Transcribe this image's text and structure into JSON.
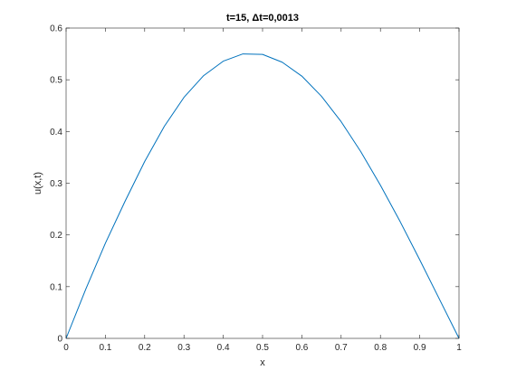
{
  "chart_data": {
    "type": "line",
    "title": "t=15, Δt=0,0013",
    "xlabel": "x",
    "ylabel": "u(x,t)",
    "xlim": [
      0,
      1
    ],
    "ylim": [
      0,
      0.6
    ],
    "xticks": [
      0,
      0.1,
      0.2,
      0.3,
      0.4,
      0.5,
      0.6,
      0.7,
      0.8,
      0.9,
      1
    ],
    "xtick_labels": [
      "0",
      "0.1",
      "0.2",
      "0.3",
      "0.4",
      "0.5",
      "0.6",
      "0.7",
      "0.8",
      "0.9",
      "1"
    ],
    "yticks": [
      0,
      0.1,
      0.2,
      0.3,
      0.4,
      0.5,
      0.6
    ],
    "ytick_labels": [
      "0",
      "0.1",
      "0.2",
      "0.3",
      "0.4",
      "0.5",
      "0.6"
    ],
    "grid": false,
    "series": [
      {
        "color": "#0072BD",
        "x": [
          0,
          0.05,
          0.1,
          0.15,
          0.2,
          0.25,
          0.3,
          0.35,
          0.4,
          0.45,
          0.5,
          0.55,
          0.6,
          0.65,
          0.7,
          0.75,
          0.8,
          0.85,
          0.9,
          0.95,
          1
        ],
        "y": [
          0,
          0.095,
          0.184,
          0.265,
          0.342,
          0.41,
          0.466,
          0.508,
          0.536,
          0.55,
          0.549,
          0.534,
          0.507,
          0.468,
          0.419,
          0.361,
          0.296,
          0.226,
          0.152,
          0.076,
          0
        ]
      }
    ]
  }
}
